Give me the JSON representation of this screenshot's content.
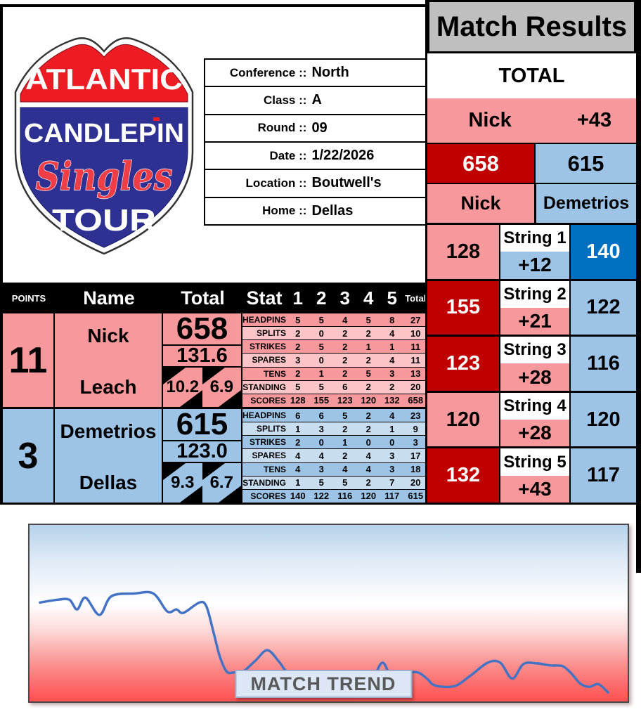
{
  "colors": {
    "pink": "#F7999C",
    "pink_light": "#FBC5C7",
    "blue": "#9DC3E6",
    "blue_light": "#C9DDF1",
    "red": "#C00000",
    "blue_dark": "#0070C0",
    "header_gray": "#BFBFBF",
    "trend_line": "#4472C4",
    "trend_label_text": "#595959",
    "logo_red": "#ED1C24",
    "logo_blue": "#2E3192"
  },
  "logo": {
    "line1": "ATLANTIC",
    "line2": "CANDLEPIN",
    "line3": "Singles",
    "line4": "TOUR"
  },
  "info": {
    "rows": [
      {
        "label": "Conference ::",
        "value": "North"
      },
      {
        "label": "Class ::",
        "value": "A"
      },
      {
        "label": "Round ::",
        "value": "09"
      },
      {
        "label": "Date ::",
        "value": "1/22/2026"
      },
      {
        "label": "Location ::",
        "value": "Boutwell's"
      },
      {
        "label": "Home ::",
        "value": "Dellas"
      }
    ]
  },
  "match_results": {
    "title": "Match Results",
    "total_label": "TOTAL",
    "leader_name": "Nick",
    "leader_margin": "+43",
    "left_total": "658",
    "right_total": "615",
    "left_name": "Nick",
    "right_name": "Demetrios"
  },
  "strings": {
    "rows": [
      {
        "label": "String 1",
        "left": "128",
        "diff": "+12",
        "right": "140",
        "left_bg": "pink",
        "diff_bg": "blue",
        "right_bg": "blueDark"
      },
      {
        "label": "String 2",
        "left": "155",
        "diff": "+21",
        "right": "122",
        "left_bg": "red",
        "diff_bg": "pink",
        "right_bg": "blue"
      },
      {
        "label": "String 3",
        "left": "123",
        "diff": "+28",
        "right": "116",
        "left_bg": "red",
        "diff_bg": "pink",
        "right_bg": "blue"
      },
      {
        "label": "String 4",
        "left": "120",
        "diff": "+28",
        "right": "120",
        "left_bg": "pink",
        "diff_bg": "pink",
        "right_bg": "blue"
      },
      {
        "label": "String 5",
        "left": "132",
        "diff": "+43",
        "right": "117",
        "left_bg": "red",
        "diff_bg": "pink",
        "right_bg": "blue"
      }
    ]
  },
  "stats_table": {
    "headers": {
      "points": "POINTS",
      "name": "Name",
      "total": "Total",
      "stat": "Stat",
      "cols": [
        "1",
        "2",
        "3",
        "4",
        "5"
      ],
      "total_small": "Total"
    },
    "players": [
      {
        "theme": "pink",
        "points": "11",
        "first": "Nick",
        "last": "Leach",
        "total": "658",
        "average": "131.6",
        "split_left": "10.2",
        "split_right": "6.9",
        "rows": [
          {
            "label": "HEADPINS",
            "values": [
              "5",
              "5",
              "4",
              "5",
              "8"
            ],
            "total": "27"
          },
          {
            "label": "SPLITS",
            "values": [
              "2",
              "0",
              "2",
              "2",
              "4"
            ],
            "total": "10"
          },
          {
            "label": "STRIKES",
            "values": [
              "2",
              "5",
              "2",
              "1",
              "1"
            ],
            "total": "11"
          },
          {
            "label": "SPARES",
            "values": [
              "3",
              "0",
              "2",
              "2",
              "4"
            ],
            "total": "11"
          },
          {
            "label": "TENS",
            "values": [
              "2",
              "1",
              "2",
              "5",
              "3"
            ],
            "total": "13"
          },
          {
            "label": "STANDING",
            "values": [
              "5",
              "5",
              "6",
              "2",
              "2"
            ],
            "total": "20"
          },
          {
            "label": "SCORES",
            "values": [
              "128",
              "155",
              "123",
              "120",
              "132"
            ],
            "total": "658"
          }
        ]
      },
      {
        "theme": "blue",
        "points": "3",
        "first": "Demetrios",
        "last": "Dellas",
        "total": "615",
        "average": "123.0",
        "split_left": "9.3",
        "split_right": "6.7",
        "rows": [
          {
            "label": "HEADPINS",
            "values": [
              "6",
              "6",
              "5",
              "2",
              "4"
            ],
            "total": "23"
          },
          {
            "label": "SPLITS",
            "values": [
              "1",
              "3",
              "2",
              "2",
              "1"
            ],
            "total": "9"
          },
          {
            "label": "STRIKES",
            "values": [
              "2",
              "0",
              "1",
              "0",
              "0"
            ],
            "total": "3"
          },
          {
            "label": "SPARES",
            "values": [
              "4",
              "4",
              "2",
              "4",
              "3"
            ],
            "total": "17"
          },
          {
            "label": "TENS",
            "values": [
              "4",
              "3",
              "4",
              "4",
              "3"
            ],
            "total": "18"
          },
          {
            "label": "STANDING",
            "values": [
              "1",
              "5",
              "5",
              "2",
              "7"
            ],
            "total": "20"
          },
          {
            "label": "SCORES",
            "values": [
              "140",
              "122",
              "116",
              "120",
              "117"
            ],
            "total": "615"
          }
        ]
      }
    ]
  },
  "trend": {
    "label": "MATCH TREND"
  },
  "chart_data": {
    "type": "line",
    "title": "MATCH TREND",
    "description": "Smoothed momentum line over the match; upper blue zone = Demetrios ahead, lower red zone = Nick ahead; line falls into the red zone as Nick builds his +43 win (658-615).",
    "x_range": [
      0,
      855
    ],
    "y_range": [
      0,
      255
    ],
    "y_inverted": true,
    "points": [
      [
        15,
        112
      ],
      [
        40,
        108
      ],
      [
        57,
        108
      ],
      [
        68,
        122
      ],
      [
        80,
        105
      ],
      [
        100,
        130
      ],
      [
        117,
        103
      ],
      [
        150,
        99
      ],
      [
        177,
        99
      ],
      [
        197,
        125
      ],
      [
        210,
        122
      ],
      [
        220,
        127
      ],
      [
        243,
        112
      ],
      [
        253,
        118
      ],
      [
        263,
        155
      ],
      [
        272,
        190
      ],
      [
        282,
        212
      ],
      [
        293,
        213
      ],
      [
        305,
        212
      ],
      [
        323,
        196
      ],
      [
        340,
        181
      ],
      [
        357,
        198
      ],
      [
        368,
        212
      ],
      [
        390,
        220
      ],
      [
        420,
        227
      ],
      [
        445,
        228
      ],
      [
        470,
        227
      ],
      [
        490,
        222
      ],
      [
        505,
        199
      ],
      [
        520,
        226
      ],
      [
        538,
        215
      ],
      [
        555,
        213
      ],
      [
        568,
        222
      ],
      [
        580,
        232
      ],
      [
        607,
        233
      ],
      [
        630,
        218
      ],
      [
        655,
        199
      ],
      [
        673,
        199
      ],
      [
        690,
        222
      ],
      [
        706,
        201
      ],
      [
        725,
        200
      ],
      [
        745,
        203
      ],
      [
        762,
        204
      ],
      [
        775,
        215
      ],
      [
        787,
        229
      ],
      [
        800,
        234
      ],
      [
        813,
        230
      ],
      [
        827,
        242
      ]
    ]
  }
}
